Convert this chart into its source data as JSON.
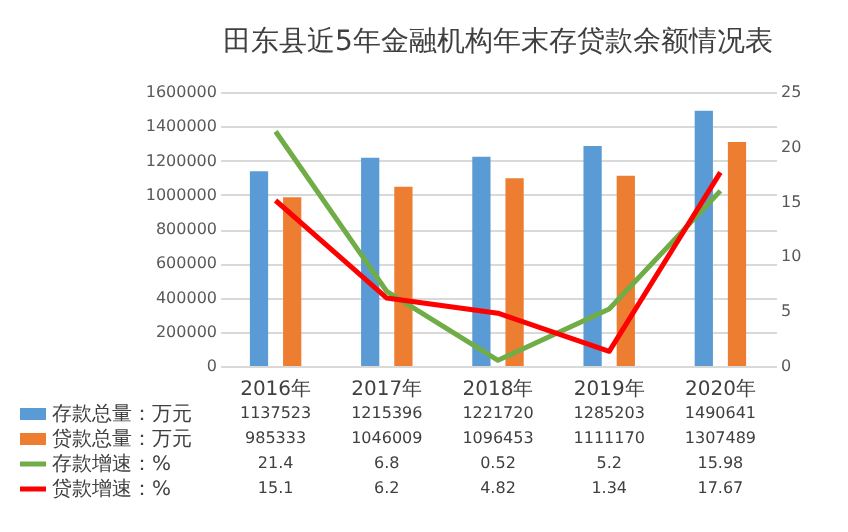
{
  "chart_data": {
    "type": "bar",
    "title": "田东县近5年金融机构年末存贷款余额情况表",
    "categories": [
      "2016年",
      "2017年",
      "2018年",
      "2019年",
      "2020年"
    ],
    "series": [
      {
        "name": "存款总量：万元",
        "color": "#5b9bd5",
        "values": [
          1137523,
          1215396,
          1221720,
          1285203,
          1490641
        ]
      },
      {
        "name": "贷款总量：万元",
        "color": "#ed7d31",
        "values": [
          985333,
          1046009,
          1096453,
          1111170,
          1307489
        ]
      },
      {
        "name": "存款增速：%",
        "type": "line",
        "axis": "y2",
        "color": "#70ad47",
        "values": [
          21.4,
          6.8,
          0.52,
          5.2,
          15.98
        ]
      },
      {
        "name": "贷款增速：%",
        "type": "line",
        "axis": "y2",
        "color": "#ff0000",
        "values": [
          15.1,
          6.2,
          4.82,
          1.34,
          17.67
        ]
      }
    ],
    "ylim": [
      0,
      1600000
    ],
    "yticks": [
      0,
      200000,
      400000,
      600000,
      800000,
      1000000,
      1200000,
      1400000,
      1600000
    ],
    "y2lim": [
      0,
      25
    ],
    "y2ticks": [
      0,
      5,
      10,
      15,
      20,
      25
    ],
    "grid": "y",
    "legend": "bottom",
    "data_labels": true
  }
}
